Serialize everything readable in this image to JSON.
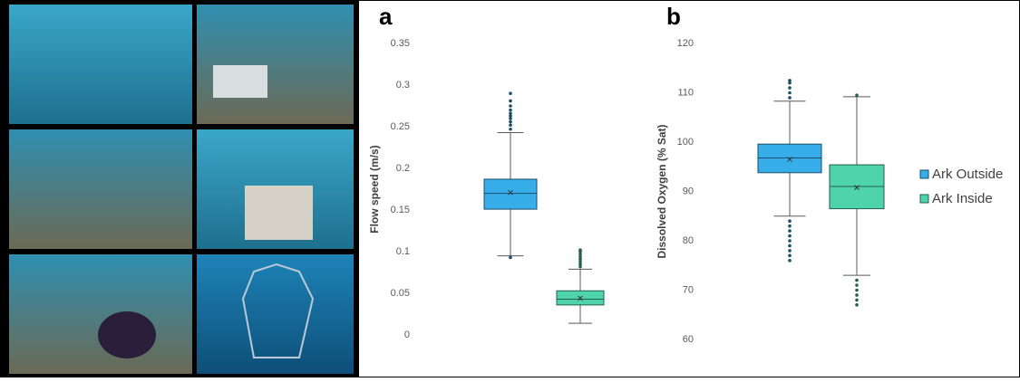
{
  "chart_data": [
    {
      "type": "box",
      "panel": "a",
      "y_label": "Flow speed (m/s)",
      "ylim": [
        0,
        0.35
      ],
      "yticks": [
        0,
        0.05,
        0.1,
        0.15,
        0.2,
        0.25,
        0.3,
        0.35
      ],
      "series": [
        {
          "color": "#37aeea",
          "whisker_low": 0.095,
          "q1": 0.151,
          "median": 0.17,
          "q3": 0.187,
          "whisker_high": 0.243,
          "mean": 0.171,
          "outliers": [
            0.093,
            0.247,
            0.252,
            0.256,
            0.26,
            0.263,
            0.266,
            0.27,
            0.275,
            0.281,
            0.29
          ]
        },
        {
          "color": "#4fd3a8",
          "whisker_low": 0.014,
          "q1": 0.036,
          "median": 0.043,
          "q3": 0.053,
          "whisker_high": 0.079,
          "mean": 0.044,
          "outliers": [
            0.082,
            0.085,
            0.088,
            0.091,
            0.094,
            0.097,
            0.1,
            0.102
          ]
        }
      ]
    },
    {
      "type": "box",
      "panel": "b",
      "y_label": "Dissolved Oxygen (% Sat)",
      "ylim": [
        60,
        120
      ],
      "yticks": [
        60,
        70,
        80,
        90,
        100,
        110,
        120
      ],
      "legend": "right",
      "series": [
        {
          "name": "Ark Outside",
          "color": "#37aeea",
          "whisker_low": 85,
          "q1": 93.8,
          "median": 96.8,
          "q3": 99.6,
          "whisker_high": 108.3,
          "mean": 96.5,
          "outliers": [
            76,
            77,
            78,
            79,
            80,
            81,
            82,
            83,
            84,
            109,
            110,
            111,
            112,
            112.5
          ]
        },
        {
          "name": "Ark Inside",
          "color": "#4fd3a8",
          "whisker_low": 73,
          "q1": 86.5,
          "median": 91,
          "q3": 95.4,
          "whisker_high": 109.2,
          "mean": 90.8,
          "outliers": [
            67,
            68,
            69,
            70,
            71,
            72,
            109.5
          ]
        }
      ]
    }
  ]
}
